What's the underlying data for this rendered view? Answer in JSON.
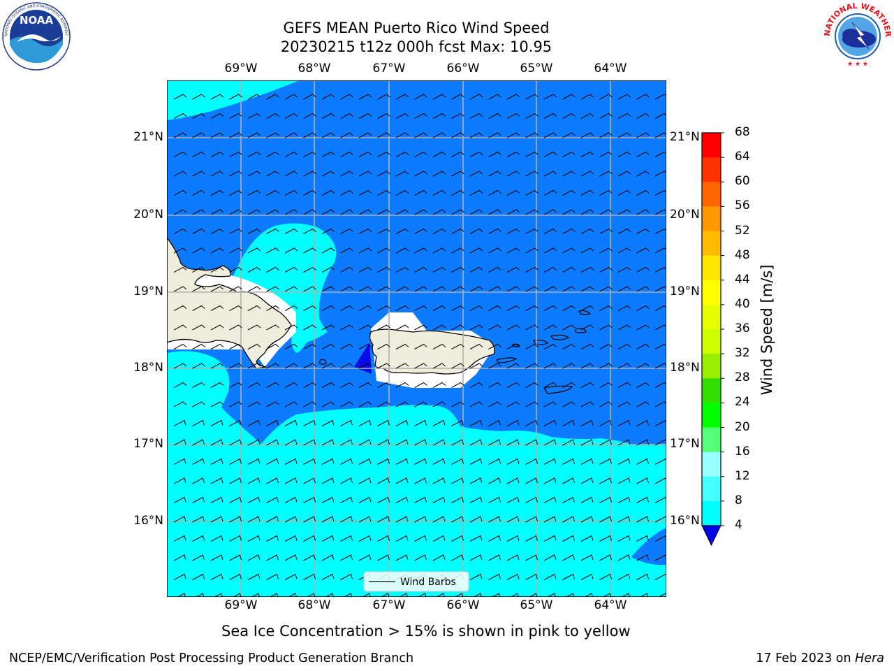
{
  "header": {
    "title_line1": "GEFS MEAN Puerto Rico Wind Speed",
    "title_line2": "20230215 t12z 000h fcst   Max: 10.95"
  },
  "logos": {
    "left": {
      "name": "NOAA",
      "ring_text": "NATIONAL OCEANIC AND ATMOSPHERIC ADMINISTRATION",
      "bottom_text": "U.S. DEPARTMENT OF COMMERCE"
    },
    "right": {
      "ring_text": "NATIONAL WEATHER SERVICE"
    }
  },
  "map": {
    "lon_labels": [
      "69°W",
      "68°W",
      "67°W",
      "66°W",
      "65°W",
      "64°W"
    ],
    "lat_labels": [
      "21°N",
      "20°N",
      "19°N",
      "18°N",
      "17°N",
      "16°N"
    ],
    "legend_label": "Wind Barbs",
    "colors": {
      "land": "#efeedc",
      "ocean_4_8": "#0d7bff",
      "ocean_8_12": "#00ffff",
      "ocean_lt4": "#0a0ae6",
      "grid": "#b0b0b0"
    }
  },
  "colorbar": {
    "label": "Wind Speed [m/s]",
    "ticks": [
      "68",
      "64",
      "60",
      "56",
      "52",
      "48",
      "44",
      "40",
      "36",
      "32",
      "28",
      "24",
      "20",
      "16",
      "12",
      "8",
      "4"
    ],
    "colors": [
      "#ff0000",
      "#ff3300",
      "#ff6600",
      "#ff9900",
      "#ffbb00",
      "#ffe600",
      "#ffff00",
      "#e6ff00",
      "#ccff00",
      "#99ee00",
      "#33dd00",
      "#00ff00",
      "#55ff77",
      "#99ffff",
      "#44ffff",
      "#00ffff",
      "#0d7bff"
    ],
    "under_color": "#0000ee"
  },
  "notes": {
    "sea_ice": "Sea Ice Concentration > 15% is shown in pink to yellow"
  },
  "footer": {
    "left": "NCEP/EMC/Verification Post Processing Product Generation Branch",
    "right_prefix": "17 Feb 2023 on ",
    "right_host": "Hera"
  }
}
